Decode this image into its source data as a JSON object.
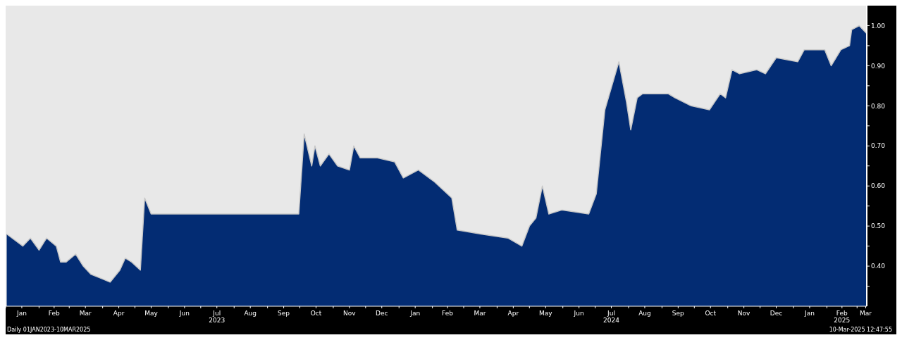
{
  "chart_data": {
    "type": "area",
    "annotations": [
      "Daily 01JAN2023-10MAR2025",
      "10-Mar-2025 12:47:55"
    ],
    "x": [
      "2023-01-02",
      "2023-01-17",
      "2023-01-24",
      "2023-02-01",
      "2023-02-08",
      "2023-02-17",
      "2023-02-21",
      "2023-02-26",
      "2023-03-07",
      "2023-03-14",
      "2023-03-21",
      "2023-03-30",
      "2023-04-08",
      "2023-04-17",
      "2023-04-22",
      "2023-04-28",
      "2023-05-06",
      "2023-05-10",
      "2023-05-16",
      "2023-09-30",
      "2023-10-05",
      "2023-10-12",
      "2023-10-15",
      "2023-10-20",
      "2023-10-28",
      "2023-11-05",
      "2023-11-16",
      "2023-11-20",
      "2023-11-26",
      "2023-12-12",
      "2023-12-28",
      "2024-01-05",
      "2024-01-19",
      "2024-02-03",
      "2024-02-19",
      "2024-02-24",
      "2024-03-17",
      "2024-04-11",
      "2024-04-24",
      "2024-05-01",
      "2024-05-07",
      "2024-05-13",
      "2024-05-19",
      "2024-05-31",
      "2024-06-25",
      "2024-07-02",
      "2024-07-10",
      "2024-07-23",
      "2024-07-30",
      "2024-08-03",
      "2024-08-09",
      "2024-08-14",
      "2024-09-07",
      "2024-09-13",
      "2024-09-28",
      "2024-10-15",
      "2024-10-25",
      "2024-10-30",
      "2024-11-05",
      "2024-11-12",
      "2024-11-28",
      "2024-12-06",
      "2024-12-16",
      "2025-01-05",
      "2025-01-11",
      "2025-01-30",
      "2025-02-05",
      "2025-02-14",
      "2025-02-22",
      "2025-02-24",
      "2025-03-03",
      "2025-03-10"
    ],
    "series": [
      {
        "color": "#032c73",
        "values": [
          0.48,
          0.45,
          0.47,
          0.44,
          0.47,
          0.45,
          0.41,
          0.41,
          0.43,
          0.4,
          0.38,
          0.37,
          0.36,
          0.39,
          0.42,
          0.41,
          0.39,
          0.57,
          0.53,
          0.53,
          0.73,
          0.65,
          0.7,
          0.65,
          0.68,
          0.65,
          0.64,
          0.7,
          0.67,
          0.67,
          0.66,
          0.62,
          0.64,
          0.61,
          0.57,
          0.49,
          0.48,
          0.47,
          0.45,
          0.5,
          0.52,
          0.6,
          0.53,
          0.54,
          0.53,
          0.58,
          0.79,
          0.91,
          0.81,
          0.74,
          0.82,
          0.83,
          0.83,
          0.82,
          0.8,
          0.79,
          0.83,
          0.82,
          0.89,
          0.88,
          0.89,
          0.88,
          0.92,
          0.91,
          0.94,
          0.94,
          0.9,
          0.94,
          0.95,
          0.99,
          1.0,
          0.98
        ]
      }
    ],
    "xlim": [
      "2023-01-01",
      "2025-03-10"
    ],
    "xticks": [
      {
        "value": "2023-01-01",
        "label": null
      },
      {
        "value": "2023-01-16",
        "label": "Jan"
      },
      {
        "value": "2023-02-01",
        "label": null
      },
      {
        "value": "2023-02-15",
        "label": "Feb"
      },
      {
        "value": "2023-03-01",
        "label": null
      },
      {
        "value": "2023-03-16",
        "label": "Mar"
      },
      {
        "value": "2023-04-01",
        "label": null
      },
      {
        "value": "2023-04-16",
        "label": "Apr"
      },
      {
        "value": "2023-05-01",
        "label": null
      },
      {
        "value": "2023-05-16",
        "label": "May"
      },
      {
        "value": "2023-06-01",
        "label": null
      },
      {
        "value": "2023-06-16",
        "label": "Jun"
      },
      {
        "value": "2023-07-01",
        "label": null
      },
      {
        "value": "2023-07-16",
        "label": "Jul\n2023"
      },
      {
        "value": "2023-08-01",
        "label": null
      },
      {
        "value": "2023-08-16",
        "label": "Aug"
      },
      {
        "value": "2023-09-01",
        "label": null
      },
      {
        "value": "2023-09-16",
        "label": "Sep"
      },
      {
        "value": "2023-10-01",
        "label": null
      },
      {
        "value": "2023-10-16",
        "label": "Oct"
      },
      {
        "value": "2023-11-01",
        "label": null
      },
      {
        "value": "2023-11-16",
        "label": "Nov"
      },
      {
        "value": "2023-12-01",
        "label": null
      },
      {
        "value": "2023-12-16",
        "label": "Dec"
      },
      {
        "value": "2024-01-01",
        "label": null
      },
      {
        "value": "2024-01-16",
        "label": "Jan"
      },
      {
        "value": "2024-02-01",
        "label": null
      },
      {
        "value": "2024-02-15",
        "label": "Feb"
      },
      {
        "value": "2024-03-01",
        "label": null
      },
      {
        "value": "2024-03-16",
        "label": "Mar"
      },
      {
        "value": "2024-04-01",
        "label": null
      },
      {
        "value": "2024-04-16",
        "label": "Apr"
      },
      {
        "value": "2024-05-01",
        "label": null
      },
      {
        "value": "2024-05-16",
        "label": "May"
      },
      {
        "value": "2024-06-01",
        "label": null
      },
      {
        "value": "2024-06-16",
        "label": "Jun"
      },
      {
        "value": "2024-07-01",
        "label": null
      },
      {
        "value": "2024-07-16",
        "label": "Jul\n2024"
      },
      {
        "value": "2024-08-01",
        "label": null
      },
      {
        "value": "2024-08-16",
        "label": "Aug"
      },
      {
        "value": "2024-09-01",
        "label": null
      },
      {
        "value": "2024-09-16",
        "label": "Sep"
      },
      {
        "value": "2024-10-01",
        "label": null
      },
      {
        "value": "2024-10-16",
        "label": "Oct"
      },
      {
        "value": "2024-11-01",
        "label": null
      },
      {
        "value": "2024-11-16",
        "label": "Nov"
      },
      {
        "value": "2024-12-01",
        "label": null
      },
      {
        "value": "2024-12-16",
        "label": "Dec"
      },
      {
        "value": "2025-01-01",
        "label": null
      },
      {
        "value": "2025-01-16",
        "label": "Jan"
      },
      {
        "value": "2025-02-01",
        "label": null
      },
      {
        "value": "2025-02-15",
        "label": "Feb\n2025"
      },
      {
        "value": "2025-03-01",
        "label": null
      },
      {
        "value": "2025-03-09",
        "label": "Mar"
      }
    ],
    "ylim": [
      0.3,
      1.05
    ],
    "yticks": [
      {
        "value": 0.35,
        "label": null
      },
      {
        "value": 0.4,
        "label": "0.40"
      },
      {
        "value": 0.45,
        "label": null
      },
      {
        "value": 0.5,
        "label": "0.50"
      },
      {
        "value": 0.55,
        "label": null
      },
      {
        "value": 0.6,
        "label": "0.60"
      },
      {
        "value": 0.65,
        "label": null
      },
      {
        "value": 0.7,
        "label": "0.70"
      },
      {
        "value": 0.75,
        "label": null
      },
      {
        "value": 0.8,
        "label": "0.80"
      },
      {
        "value": 0.85,
        "label": null
      },
      {
        "value": 0.9,
        "label": "0.90"
      },
      {
        "value": 0.95,
        "label": null
      },
      {
        "value": 1.0,
        "label": "1.00"
      }
    ]
  }
}
